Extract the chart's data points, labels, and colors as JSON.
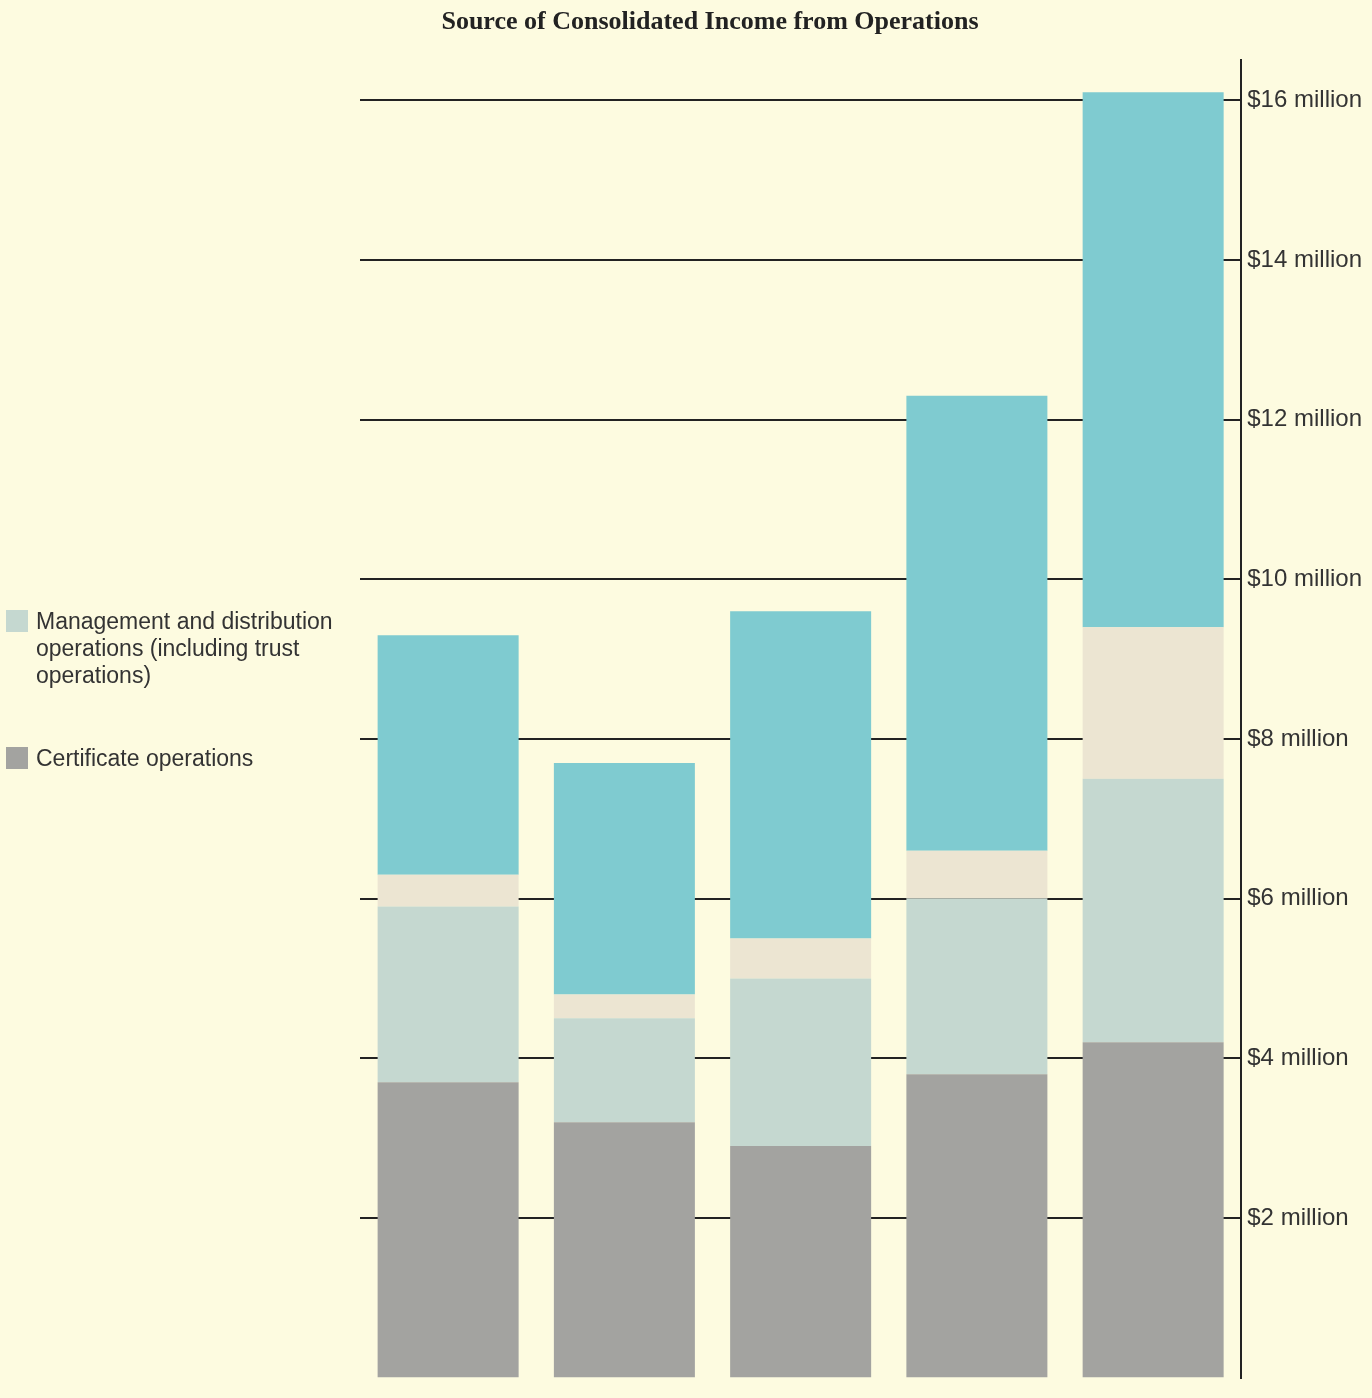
{
  "chart_data": {
    "type": "bar",
    "title": "Source of Consolidated Income from Operations",
    "stacked": true,
    "categories": [
      null,
      null,
      null,
      null,
      null
    ],
    "series": [
      {
        "name": "Certificate operations",
        "color": "#a3a3a0",
        "values": [
          3.7,
          3.2,
          2.9,
          3.8,
          4.2
        ]
      },
      {
        "name": "Management and distribution operations (including trust operations)",
        "color": "#c5d8d0",
        "values": [
          2.2,
          1.3,
          2.1,
          2.2,
          3.3
        ]
      },
      {
        "color": "#ece5d2",
        "values": [
          0.4,
          0.3,
          0.5,
          0.6,
          1.9
        ]
      },
      {
        "color": "#7fcbd0",
        "values": [
          3.0,
          2.9,
          4.1,
          5.7,
          6.7
        ]
      }
    ],
    "ylim": [
      0,
      16.5
    ],
    "yticks": [
      {
        "value": 2,
        "label": "$2 million"
      },
      {
        "value": 4,
        "label": "$4 million"
      },
      {
        "value": 6,
        "label": "$6 million"
      },
      {
        "value": 8,
        "label": "$8 million"
      },
      {
        "value": 10,
        "label": "$10 million"
      },
      {
        "value": 12,
        "label": "$12 million"
      },
      {
        "value": 14,
        "label": "$14 million"
      },
      {
        "value": 16,
        "label": "$16 million"
      }
    ],
    "grid": "y",
    "legend": "left"
  }
}
